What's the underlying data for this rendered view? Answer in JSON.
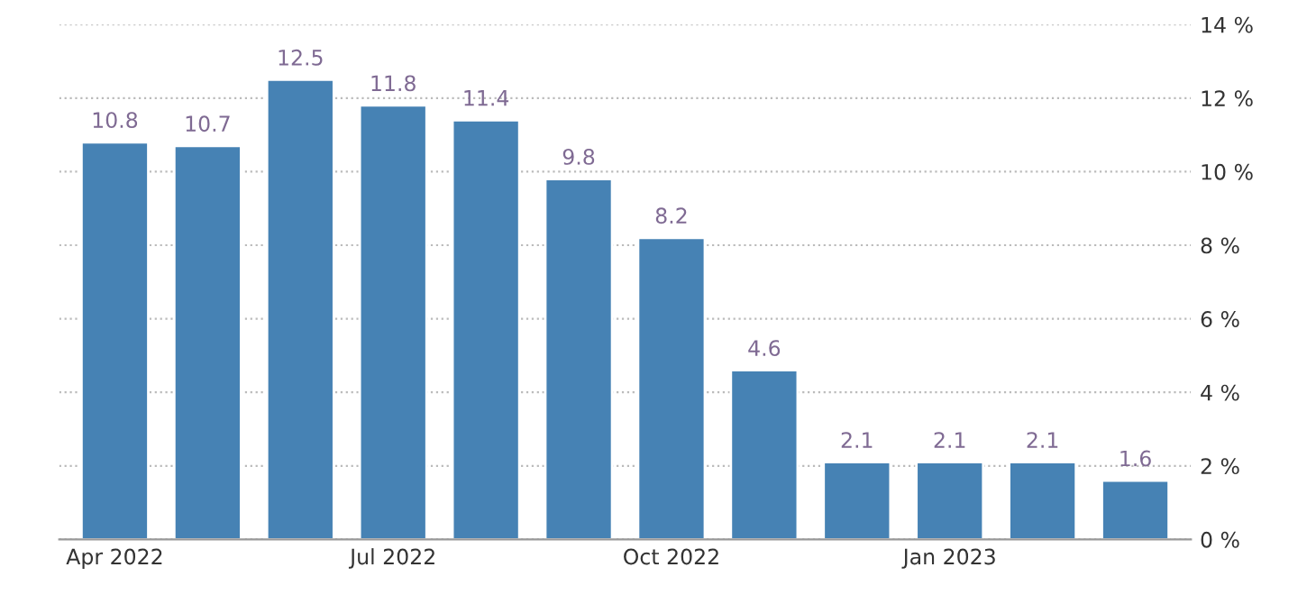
{
  "chart_data": {
    "type": "bar",
    "categories": [
      "Apr 2022",
      null,
      null,
      "Jul 2022",
      null,
      null,
      "Oct 2022",
      null,
      null,
      "Jan 2023",
      null,
      null
    ],
    "values": [
      10.8,
      10.7,
      12.5,
      11.8,
      11.4,
      9.8,
      8.2,
      4.6,
      2.1,
      2.1,
      2.1,
      1.6
    ],
    "color": "#4682b4",
    "data_labels": true,
    "grid": "y",
    "legend": false,
    "ylim": [
      0,
      14
    ],
    "yticks": [
      {
        "value": 0,
        "label": "0 %"
      },
      {
        "value": 2,
        "label": "2 %"
      },
      {
        "value": 4,
        "label": "4 %"
      },
      {
        "value": 6,
        "label": "6 %"
      },
      {
        "value": 8,
        "label": "8 %"
      },
      {
        "value": 10,
        "label": "10 %"
      },
      {
        "value": 12,
        "label": "12 %"
      },
      {
        "value": 14,
        "label": "14 %"
      }
    ]
  }
}
